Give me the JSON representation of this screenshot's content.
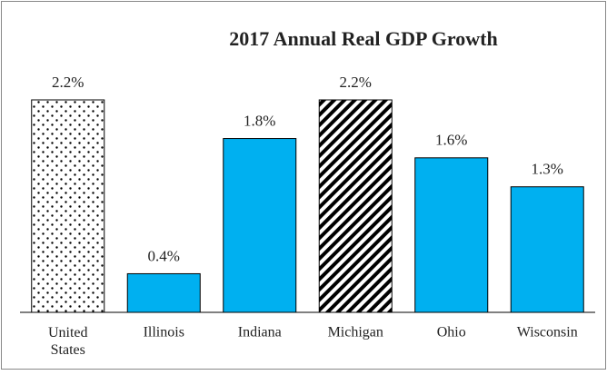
{
  "chart_data": {
    "type": "bar",
    "title": "2017 Annual  Real GDP Growth",
    "categories": [
      "United States",
      "Illinois",
      "Indiana",
      "Michigan",
      "Ohio",
      "Wisconsin"
    ],
    "values": [
      2.2,
      0.4,
      1.8,
      2.2,
      1.6,
      1.3
    ],
    "value_labels": [
      "2.2%",
      "0.4%",
      "1.8%",
      "2.2%",
      "1.6%",
      "1.3%"
    ],
    "colors": [
      "#ff0000",
      "#00b0f0",
      "#00b0f0",
      "#00a651",
      "#00b0f0",
      "#00b0f0"
    ],
    "hatch": [
      "dots",
      "none",
      "none",
      "stripes",
      "none",
      "none"
    ],
    "ylim": [
      0,
      2.2
    ]
  }
}
